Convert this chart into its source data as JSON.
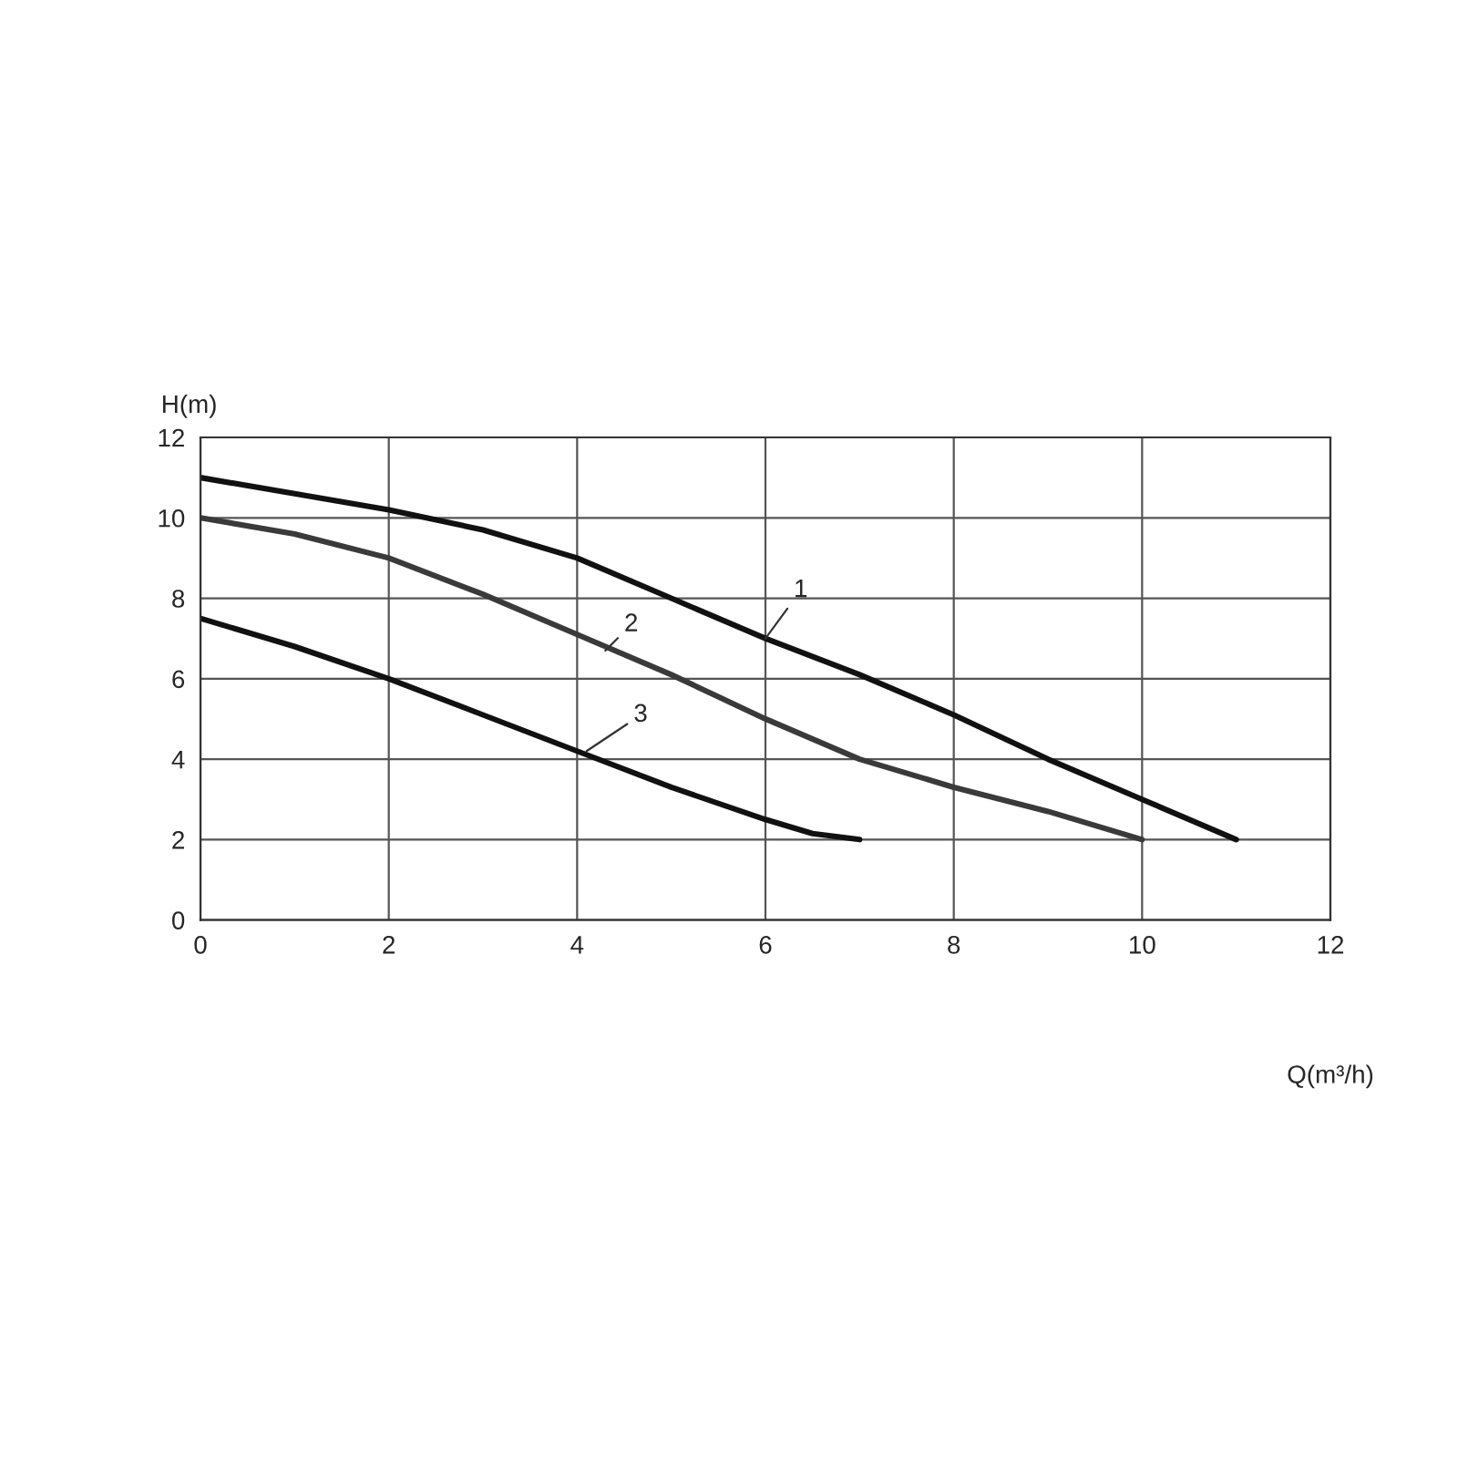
{
  "chart_data": {
    "type": "line",
    "xlabel": "Q(m³/h)",
    "ylabel": "H(m)",
    "xlim": [
      0,
      12
    ],
    "ylim": [
      0,
      12
    ],
    "xticks": [
      0,
      2,
      4,
      6,
      8,
      10,
      12
    ],
    "yticks": [
      0,
      2,
      4,
      6,
      8,
      10,
      12
    ],
    "grid": true,
    "legend": false,
    "marker": "none",
    "line_style": "solid",
    "series": [
      {
        "color": "#111111",
        "x": [
          0,
          1,
          2,
          3,
          4,
          5,
          6,
          7,
          8,
          9,
          10,
          11
        ],
        "values": [
          11,
          10.6,
          10.2,
          9.7,
          9.0,
          8.0,
          7.0,
          6.1,
          5.1,
          4.0,
          3.0,
          2.0
        ]
      },
      {
        "color": "#3a3a3a",
        "x": [
          0,
          1,
          2,
          3,
          4,
          5,
          6,
          7,
          8,
          9,
          10
        ],
        "values": [
          10,
          9.6,
          9.0,
          8.1,
          7.1,
          6.1,
          5.0,
          4.0,
          3.3,
          2.7,
          2.0
        ]
      },
      {
        "color": "#111111",
        "x": [
          0,
          1,
          2,
          3,
          4,
          5,
          6,
          6.5,
          7
        ],
        "values": [
          7.5,
          6.8,
          6.0,
          5.1,
          4.2,
          3.3,
          2.5,
          2.15,
          2.0
        ]
      }
    ],
    "annotations": [
      {
        "text": "1",
        "x": 6,
        "y": 7
      },
      {
        "text": "2",
        "x": 4.3,
        "y": 6.7
      },
      {
        "text": "3",
        "x": 4.1,
        "y": 4.2
      }
    ]
  }
}
